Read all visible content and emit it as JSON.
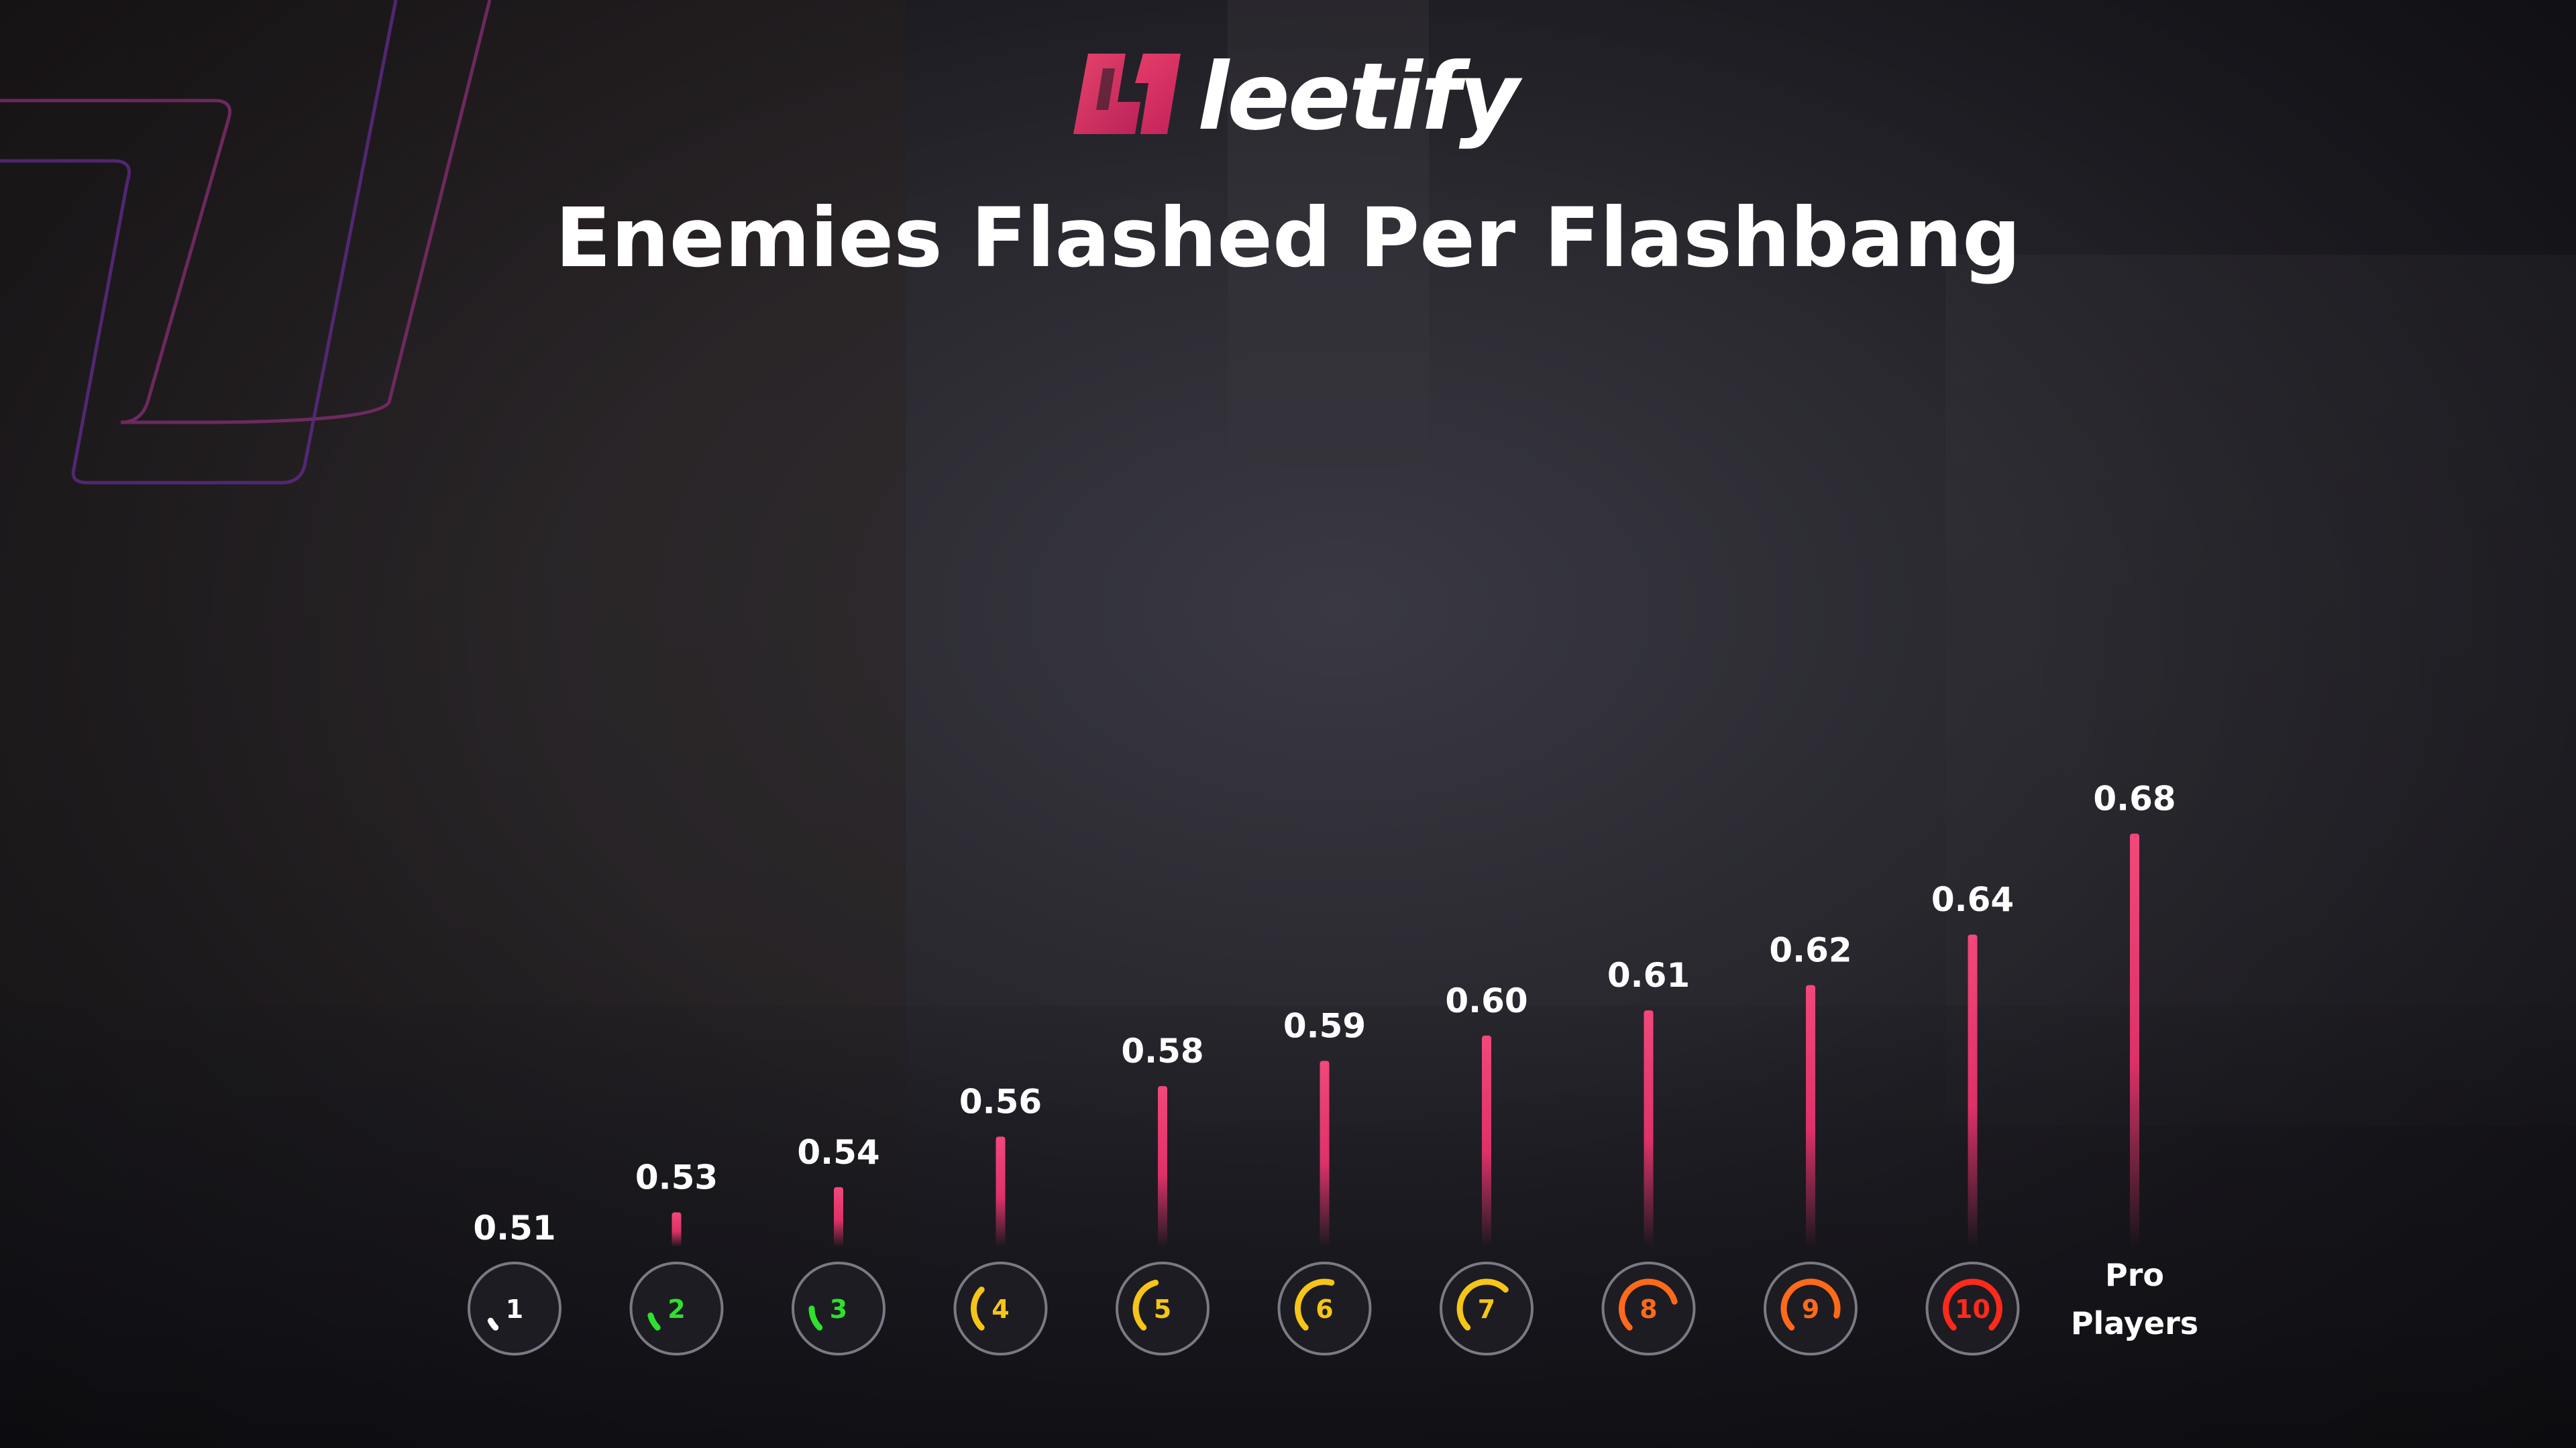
{
  "brand": {
    "name": "leetify",
    "accent_color": "#e8326c"
  },
  "chart_data": {
    "type": "bar",
    "title": "Enemies Flashed Per Flashbang",
    "xlabel": "",
    "ylabel": "",
    "categories": [
      "1",
      "2",
      "3",
      "4",
      "5",
      "6",
      "7",
      "8",
      "9",
      "10",
      "Pro Players"
    ],
    "values": [
      0.51,
      0.53,
      0.54,
      0.56,
      0.58,
      0.59,
      0.6,
      0.61,
      0.62,
      0.64,
      0.68
    ],
    "value_labels": [
      "0.51",
      "0.53",
      "0.54",
      "0.56",
      "0.58",
      "0.59",
      "0.60",
      "0.61",
      "0.62",
      "0.64",
      "0.68"
    ],
    "category_icons": [
      {
        "label": "1",
        "icon": "rank-badge-1",
        "color": "#ffffff",
        "fill_fraction": 0.05
      },
      {
        "label": "2",
        "icon": "rank-badge-2",
        "color": "#2fe02f",
        "fill_fraction": 0.1
      },
      {
        "label": "3",
        "icon": "rank-badge-3",
        "color": "#2fe02f",
        "fill_fraction": 0.15
      },
      {
        "label": "4",
        "icon": "rank-badge-4",
        "color": "#f5c518",
        "fill_fraction": 0.3
      },
      {
        "label": "5",
        "icon": "rank-badge-5",
        "color": "#f5c518",
        "fill_fraction": 0.4
      },
      {
        "label": "6",
        "icon": "rank-badge-6",
        "color": "#f5c518",
        "fill_fraction": 0.5
      },
      {
        "label": "7",
        "icon": "rank-badge-7",
        "color": "#f5c518",
        "fill_fraction": 0.6
      },
      {
        "label": "8",
        "icon": "rank-badge-8",
        "color": "#ff6a1a",
        "fill_fraction": 0.7
      },
      {
        "label": "9",
        "icon": "rank-badge-9",
        "color": "#ff6a1a",
        "fill_fraction": 0.8
      },
      {
        "label": "10",
        "icon": "rank-badge-10",
        "color": "#ff2a1a",
        "fill_fraction": 0.9
      }
    ],
    "pro_label_lines": [
      "Pro",
      "Players"
    ],
    "ylim": [
      0,
      0.7
    ],
    "grid": false,
    "bar_color": "#e8326c"
  }
}
